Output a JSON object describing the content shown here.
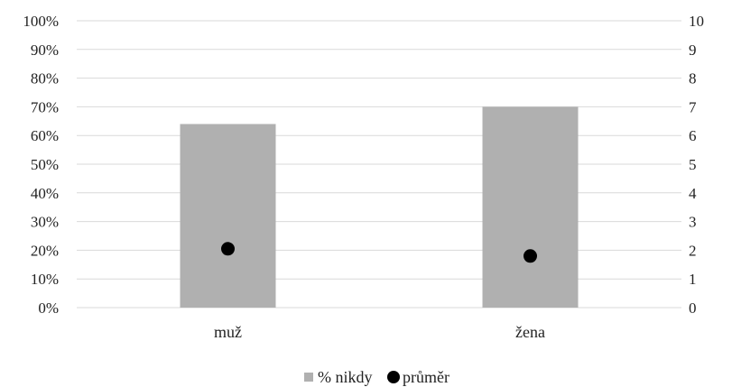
{
  "chart_data": {
    "type": "bar",
    "categories": [
      "muž",
      "žena"
    ],
    "series": [
      {
        "name": "% nikdy",
        "type": "bar",
        "axis": "left",
        "values": [
          64,
          70
        ],
        "color": "#b0b0b0"
      },
      {
        "name": "průměr",
        "type": "scatter",
        "axis": "right",
        "values": [
          2.05,
          1.8
        ],
        "color": "#000000"
      }
    ],
    "y_left": {
      "range": [
        0,
        100
      ],
      "ticks": [
        "0%",
        "10%",
        "20%",
        "30%",
        "40%",
        "50%",
        "60%",
        "70%",
        "80%",
        "90%",
        "100%"
      ]
    },
    "y_right": {
      "range": [
        0,
        10
      ],
      "ticks": [
        "0",
        "1",
        "2",
        "3",
        "4",
        "5",
        "6",
        "7",
        "8",
        "9",
        "10"
      ]
    },
    "grid": true,
    "legend": {
      "position": "bottom",
      "entries": [
        "% nikdy",
        "průměr"
      ]
    },
    "title": "",
    "xlabel": "",
    "ylabel": ""
  }
}
